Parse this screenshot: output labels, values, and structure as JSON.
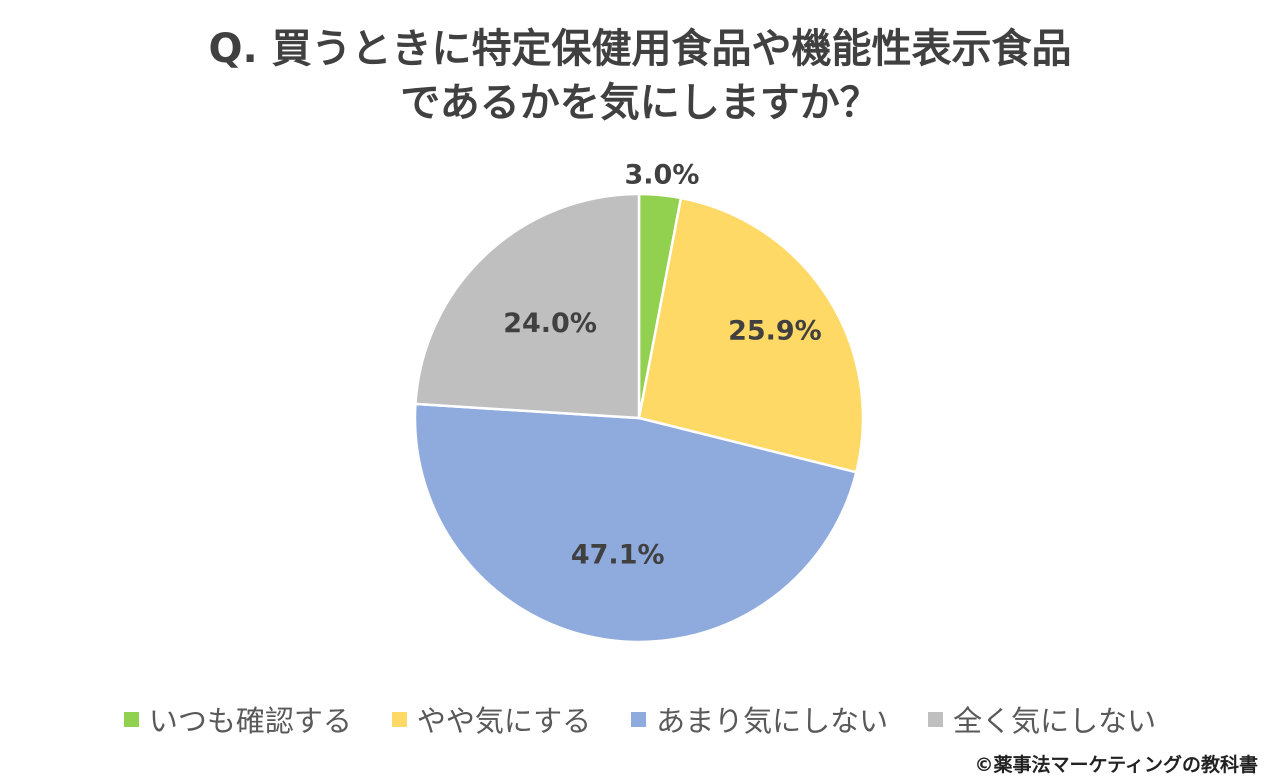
{
  "chart_data": {
    "type": "pie",
    "title_lines": [
      "Q. 買うときに特定保健用食品や機能性表示食品",
      "であるかを気にしますか？"
    ],
    "slices": [
      {
        "label": "いつも確認する",
        "value": 3.0,
        "display": "3.0%",
        "color": "#92d050"
      },
      {
        "label": "やや気にする",
        "value": 25.9,
        "display": "25.9%",
        "color": "#ffd966"
      },
      {
        "label": "あまり気にしない",
        "value": 47.1,
        "display": "47.1%",
        "color": "#8faadc"
      },
      {
        "label": "全く気にしない",
        "value": 24.0,
        "display": "24.0%",
        "color": "#bfbfbf"
      }
    ],
    "legend_position": "bottom",
    "start_angle": "12 o'clock",
    "direction": "clockwise"
  },
  "credit": "©薬事法マーケティングの教科書"
}
